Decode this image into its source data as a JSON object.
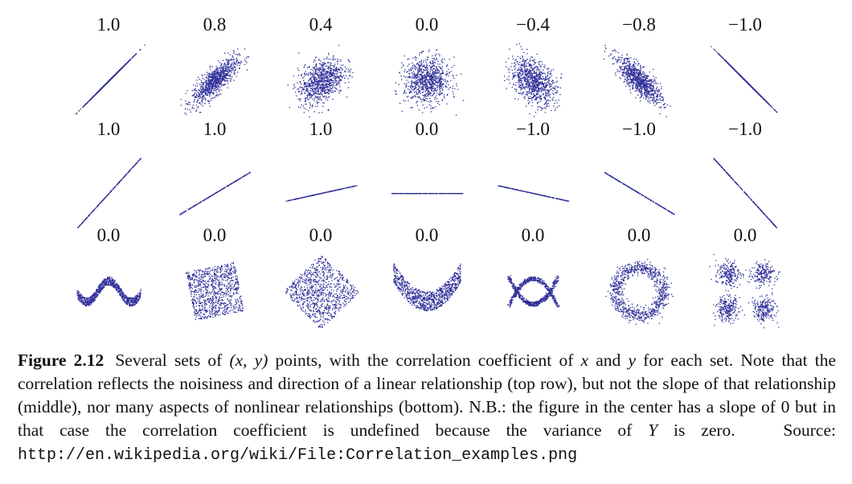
{
  "panels": [
    [
      "1.0",
      "0.8",
      "0.4",
      "0.0",
      "−0.4",
      "−0.8",
      "−1.0"
    ],
    [
      "1.0",
      "1.0",
      "1.0",
      "0.0",
      "−1.0",
      "−1.0",
      "−1.0"
    ],
    [
      "0.0",
      "0.0",
      "0.0",
      "0.0",
      "0.0",
      "0.0",
      "0.0"
    ]
  ],
  "caption": {
    "label": "Figure 2.12",
    "segments": [
      "Several sets of ",
      "(x, y)",
      " points, with the correlation coefficient of ",
      "x",
      " and ",
      "y",
      " for each set. Note that the correlation reflects the noisiness and direction of a linear relationship (top row), but not the slope of that relationship (middle), nor many aspects of nonlinear relationships (bottom). N.B.: the figure in the center has a slope of 0 but in that case the correlation coefficient is undefined because the variance of ",
      "Y",
      " is zero.",
      "Source:",
      "http://en.wikipedia.org/wiki/File:Correlation_examples.png"
    ]
  }
}
